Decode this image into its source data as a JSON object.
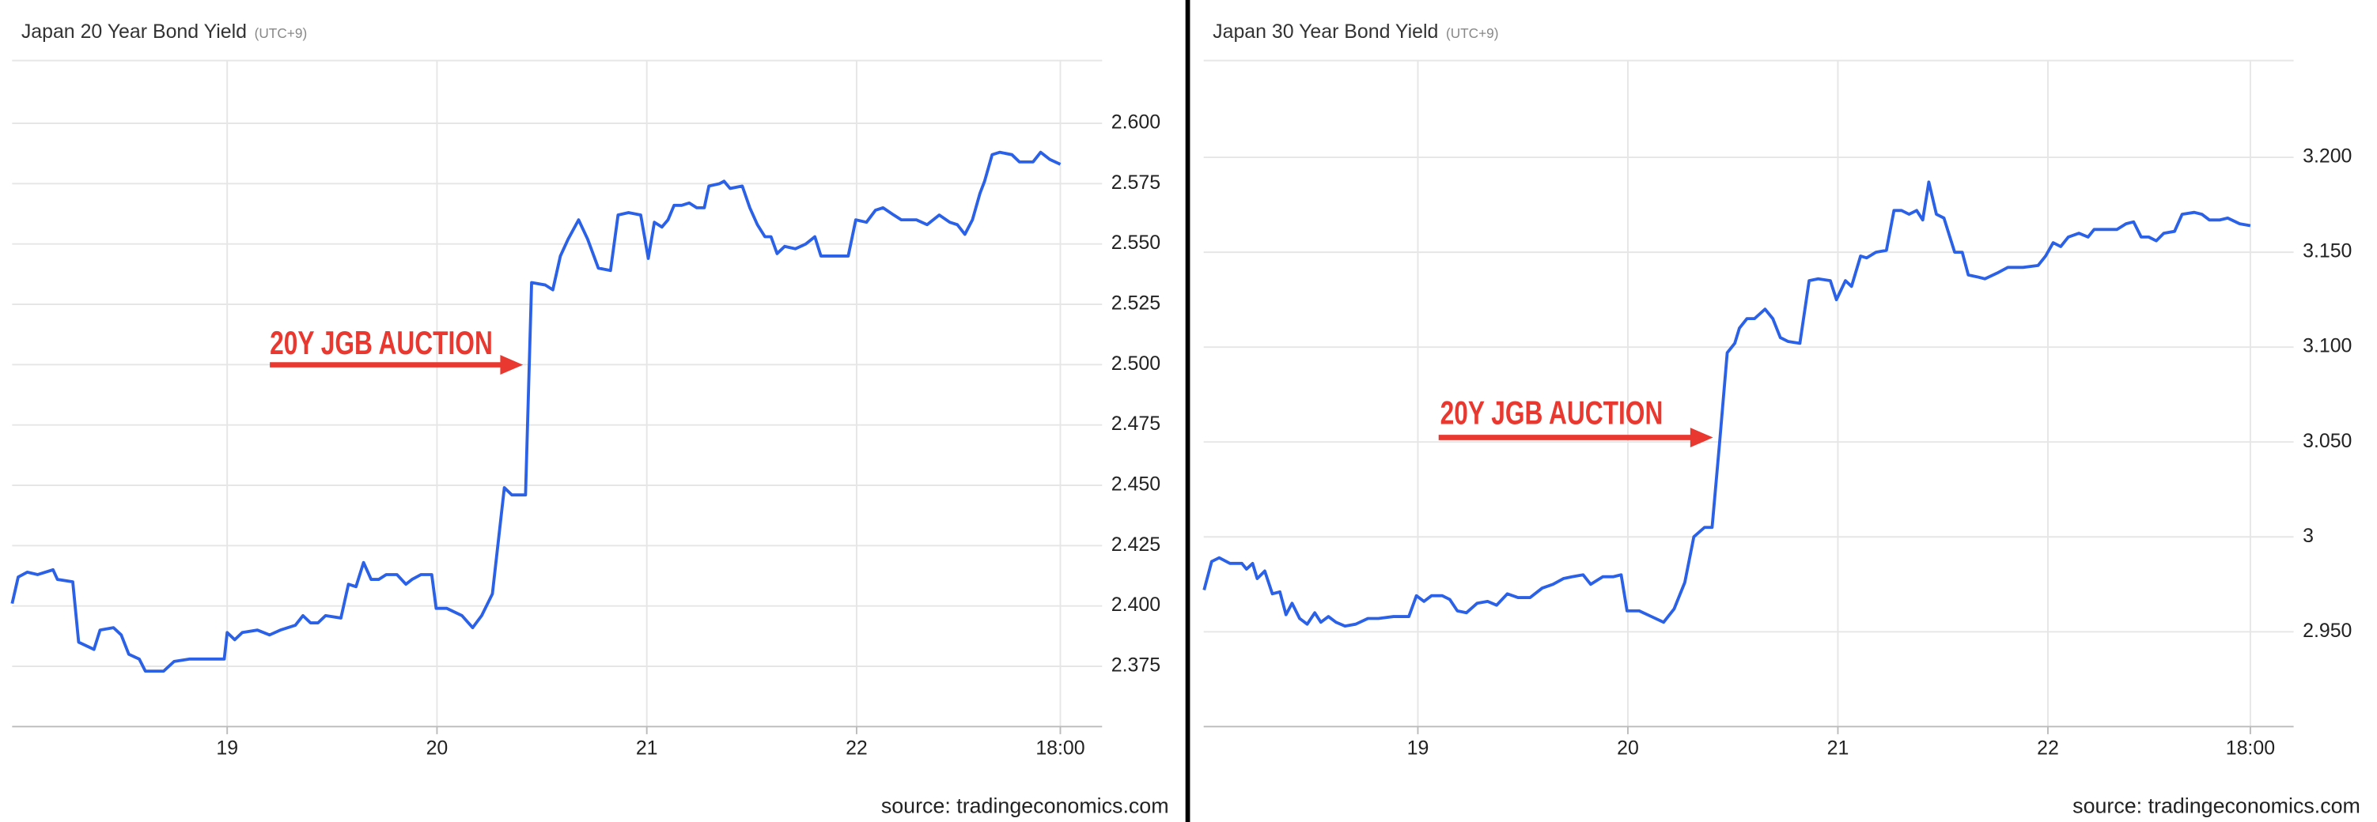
{
  "chart_data": [
    {
      "type": "line",
      "title": "Japan 20 Year Bond Yield",
      "subtitle": "(UTC+9)",
      "annotation": "20Y JGB AUCTION",
      "source": "source: tradingeconomics.com",
      "color": "#2b61e6",
      "grid": true,
      "xlim": [
        17.975,
        23.17
      ],
      "xticks": [
        19,
        20,
        21,
        22,
        {
          "value": 22.971,
          "label": "18:00"
        }
      ],
      "ylim": [
        2.35,
        2.626
      ],
      "yticks": [
        2.375,
        {
          "value": 2.4,
          "label": "2.400"
        },
        2.425,
        {
          "value": 2.45,
          "label": "2.450"
        },
        2.475,
        {
          "value": 2.5,
          "label": "2.500"
        },
        2.525,
        {
          "value": 2.55,
          "label": "2.550"
        },
        2.575,
        {
          "value": 2.6,
          "label": "2.600"
        }
      ],
      "x": [
        17.975,
        18.004,
        18.047,
        18.097,
        18.17,
        18.191,
        18.264,
        18.292,
        18.365,
        18.394,
        18.458,
        18.495,
        18.531,
        18.581,
        18.61,
        18.697,
        18.747,
        18.819,
        18.986,
        19.0,
        19.036,
        19.072,
        19.144,
        19.202,
        19.253,
        19.325,
        19.361,
        19.397,
        19.433,
        19.469,
        19.542,
        19.578,
        19.614,
        19.65,
        19.686,
        19.722,
        19.758,
        19.809,
        19.852,
        19.881,
        19.924,
        19.975,
        19.996,
        20.047,
        20.119,
        20.17,
        20.213,
        20.264,
        20.321,
        20.357,
        20.422,
        20.451,
        20.516,
        20.552,
        20.588,
        20.625,
        20.675,
        20.718,
        20.769,
        20.827,
        20.863,
        20.913,
        20.971,
        21.007,
        21.036,
        21.072,
        21.101,
        21.13,
        21.166,
        21.202,
        21.238,
        21.274,
        21.296,
        21.347,
        21.368,
        21.397,
        21.455,
        21.491,
        21.527,
        21.563,
        21.592,
        21.621,
        21.657,
        21.708,
        21.758,
        21.801,
        21.83,
        21.96,
        21.996,
        22.047,
        22.09,
        22.126,
        22.177,
        22.213,
        22.285,
        22.336,
        22.394,
        22.444,
        22.48,
        22.516,
        22.552,
        22.588,
        22.61,
        22.646,
        22.682,
        22.74,
        22.776,
        22.841,
        22.877,
        22.921,
        22.971
      ],
      "values": [
        2.401,
        2.412,
        2.414,
        2.413,
        2.415,
        2.411,
        2.41,
        2.385,
        2.382,
        2.39,
        2.391,
        2.388,
        2.38,
        2.378,
        2.373,
        2.373,
        2.377,
        2.378,
        2.378,
        2.389,
        2.386,
        2.389,
        2.39,
        2.388,
        2.39,
        2.392,
        2.396,
        2.393,
        2.393,
        2.396,
        2.395,
        2.409,
        2.408,
        2.418,
        2.411,
        2.411,
        2.413,
        2.413,
        2.409,
        2.411,
        2.413,
        2.413,
        2.399,
        2.399,
        2.396,
        2.391,
        2.396,
        2.405,
        2.449,
        2.446,
        2.446,
        2.534,
        2.533,
        2.531,
        2.545,
        2.552,
        2.56,
        2.552,
        2.54,
        2.539,
        2.562,
        2.563,
        2.562,
        2.544,
        2.559,
        2.557,
        2.56,
        2.566,
        2.566,
        2.567,
        2.565,
        2.565,
        2.574,
        2.575,
        2.576,
        2.573,
        2.574,
        2.565,
        2.558,
        2.553,
        2.553,
        2.546,
        2.549,
        2.548,
        2.55,
        2.553,
        2.545,
        2.545,
        2.56,
        2.559,
        2.564,
        2.565,
        2.562,
        2.56,
        2.56,
        2.558,
        2.562,
        2.559,
        2.558,
        2.554,
        2.56,
        2.571,
        2.576,
        2.587,
        2.588,
        2.587,
        2.584,
        2.584,
        2.588,
        2.585,
        2.583
      ]
    },
    {
      "type": "line",
      "title": "Japan 30 Year Bond Yield",
      "subtitle": "(UTC+9)",
      "annotation": "20Y JGB AUCTION",
      "source": "source: tradingeconomics.com",
      "color": "#2b61e6",
      "grid": true,
      "xlim": [
        17.98,
        23.17
      ],
      "xticks": [
        19,
        20,
        21,
        22,
        {
          "value": 22.964,
          "label": "18:00"
        }
      ],
      "ylim": [
        2.9,
        3.251
      ],
      "yticks": [
        {
          "value": 2.95,
          "label": "2.950"
        },
        3,
        {
          "value": 3.05,
          "label": "3.050"
        },
        {
          "value": 3.1,
          "label": "3.100"
        },
        {
          "value": 3.15,
          "label": "3.150"
        },
        {
          "value": 3.2,
          "label": "3.200"
        }
      ],
      "x": [
        17.982,
        18.018,
        18.054,
        18.105,
        18.162,
        18.184,
        18.213,
        18.235,
        18.271,
        18.307,
        18.343,
        18.372,
        18.401,
        18.437,
        18.473,
        18.509,
        18.538,
        18.574,
        18.61,
        18.653,
        18.704,
        18.762,
        18.812,
        18.884,
        18.957,
        18.993,
        19.029,
        19.065,
        19.116,
        19.152,
        19.188,
        19.231,
        19.282,
        19.332,
        19.375,
        19.426,
        19.477,
        19.534,
        19.592,
        19.643,
        19.693,
        19.736,
        19.787,
        19.823,
        19.881,
        19.931,
        19.968,
        19.996,
        20.054,
        20.112,
        20.17,
        20.22,
        20.271,
        20.314,
        20.365,
        20.401,
        20.437,
        20.473,
        20.509,
        20.531,
        20.567,
        20.603,
        20.653,
        20.69,
        20.726,
        20.762,
        20.819,
        20.863,
        20.906,
        20.964,
        20.993,
        21.036,
        21.065,
        21.108,
        21.137,
        21.181,
        21.231,
        21.267,
        21.303,
        21.339,
        21.375,
        21.404,
        21.433,
        21.469,
        21.505,
        21.556,
        21.592,
        21.621,
        21.664,
        21.7,
        21.758,
        21.809,
        21.881,
        21.953,
        21.989,
        22.025,
        22.061,
        22.097,
        22.148,
        22.191,
        22.22,
        22.278,
        22.329,
        22.372,
        22.408,
        22.444,
        22.48,
        22.516,
        22.552,
        22.603,
        22.639,
        22.697,
        22.733,
        22.769,
        22.819,
        22.856,
        22.913,
        22.964
      ],
      "values": [
        2.972,
        2.987,
        2.989,
        2.986,
        2.986,
        2.983,
        2.986,
        2.978,
        2.982,
        2.97,
        2.971,
        2.959,
        2.965,
        2.957,
        2.954,
        2.96,
        2.955,
        2.958,
        2.955,
        2.953,
        2.954,
        2.957,
        2.957,
        2.958,
        2.958,
        2.969,
        2.966,
        2.969,
        2.969,
        2.967,
        2.961,
        2.96,
        2.965,
        2.966,
        2.964,
        2.97,
        2.968,
        2.968,
        2.973,
        2.975,
        2.978,
        2.979,
        2.98,
        2.975,
        2.979,
        2.979,
        2.98,
        2.961,
        2.961,
        2.958,
        2.955,
        2.962,
        2.976,
        3.0,
        3.005,
        3.005,
        3.05,
        3.097,
        3.102,
        3.11,
        3.115,
        3.115,
        3.12,
        3.115,
        3.105,
        3.103,
        3.102,
        3.135,
        3.136,
        3.135,
        3.125,
        3.135,
        3.132,
        3.148,
        3.147,
        3.15,
        3.151,
        3.172,
        3.172,
        3.17,
        3.172,
        3.167,
        3.187,
        3.17,
        3.168,
        3.15,
        3.15,
        3.138,
        3.137,
        3.136,
        3.139,
        3.142,
        3.142,
        3.143,
        3.148,
        3.155,
        3.153,
        3.158,
        3.16,
        3.158,
        3.162,
        3.162,
        3.162,
        3.165,
        3.166,
        3.158,
        3.158,
        3.156,
        3.16,
        3.161,
        3.17,
        3.171,
        3.17,
        3.167,
        3.167,
        3.168,
        3.165,
        3.164
      ]
    }
  ]
}
